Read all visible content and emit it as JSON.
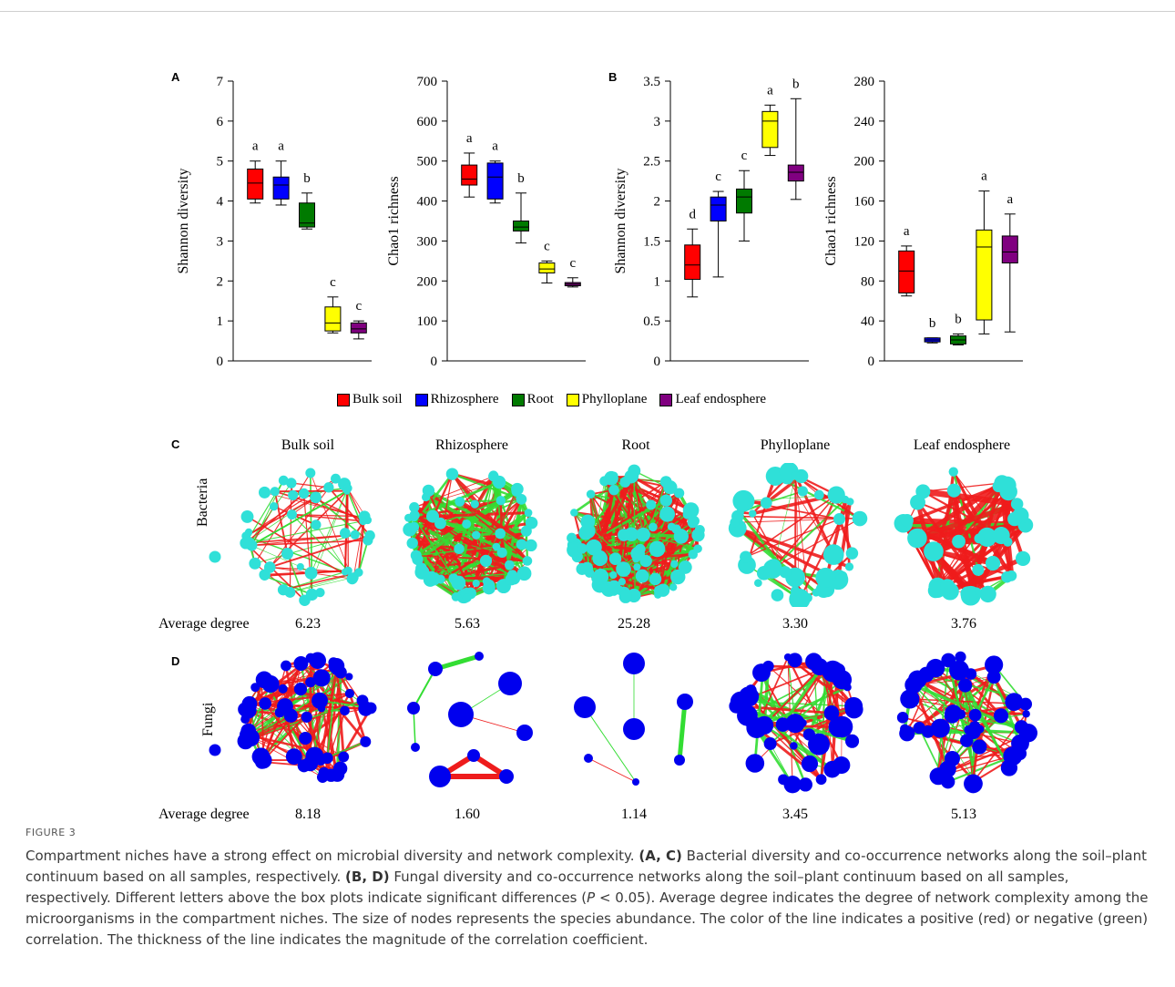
{
  "chart_data": [
    {
      "panel": "A",
      "type": "box",
      "ylabel": "Shannon diversity",
      "ylim": [
        0,
        7
      ],
      "yticks": [
        "0",
        "1",
        "2",
        "3",
        "4",
        "5",
        "6",
        "7"
      ],
      "categories": [
        "Bulk soil",
        "Rhizosphere",
        "Root",
        "Phylloplane",
        "Leaf endosphere"
      ],
      "boxes": [
        {
          "min": 3.95,
          "q1": 4.05,
          "median": 4.45,
          "q3": 4.8,
          "max": 5.0,
          "letter": "a"
        },
        {
          "min": 3.9,
          "q1": 4.05,
          "median": 4.4,
          "q3": 4.6,
          "max": 5.0,
          "letter": "a"
        },
        {
          "min": 3.3,
          "q1": 3.35,
          "median": 3.45,
          "q3": 3.95,
          "max": 4.2,
          "letter": "b"
        },
        {
          "min": 0.7,
          "q1": 0.75,
          "median": 0.95,
          "q3": 1.35,
          "max": 1.6,
          "letter": "c"
        },
        {
          "min": 0.55,
          "q1": 0.7,
          "median": 0.8,
          "q3": 0.95,
          "max": 1.0,
          "letter": "c"
        }
      ]
    },
    {
      "panel": "",
      "type": "box",
      "ylabel": "Chao1 richness",
      "ylim": [
        0,
        700
      ],
      "yticks": [
        "0",
        "100",
        "200",
        "300",
        "400",
        "500",
        "600",
        "700"
      ],
      "categories": [
        "Bulk soil",
        "Rhizosphere",
        "Root",
        "Phylloplane",
        "Leaf endosphere"
      ],
      "boxes": [
        {
          "min": 410,
          "q1": 440,
          "median": 455,
          "q3": 490,
          "max": 520,
          "letter": "a"
        },
        {
          "min": 395,
          "q1": 405,
          "median": 460,
          "q3": 495,
          "max": 500,
          "letter": "a"
        },
        {
          "min": 295,
          "q1": 325,
          "median": 335,
          "q3": 350,
          "max": 420,
          "letter": "b"
        },
        {
          "min": 195,
          "q1": 220,
          "median": 230,
          "q3": 245,
          "max": 250,
          "letter": "c"
        },
        {
          "min": 185,
          "q1": 188,
          "median": 192,
          "q3": 196,
          "max": 208,
          "letter": "c"
        }
      ]
    },
    {
      "panel": "B",
      "type": "box",
      "ylabel": "Shannon diversity",
      "ylim": [
        0,
        3.5
      ],
      "yticks": [
        "0",
        "0.5",
        "1",
        "1.5",
        "2",
        "2.5",
        "3",
        "3.5"
      ],
      "categories": [
        "Bulk soil",
        "Rhizosphere",
        "Root",
        "Phylloplane",
        "Leaf endosphere"
      ],
      "boxes": [
        {
          "min": 0.8,
          "q1": 1.02,
          "median": 1.2,
          "q3": 1.45,
          "max": 1.65,
          "letter": "d"
        },
        {
          "min": 1.05,
          "q1": 1.75,
          "median": 1.95,
          "q3": 2.05,
          "max": 2.12,
          "letter": "c"
        },
        {
          "min": 1.5,
          "q1": 1.85,
          "median": 2.05,
          "q3": 2.15,
          "max": 2.38,
          "letter": "c"
        },
        {
          "min": 2.57,
          "q1": 2.67,
          "median": 3.0,
          "q3": 3.12,
          "max": 3.2,
          "letter": "a"
        },
        {
          "min": 2.02,
          "q1": 2.25,
          "median": 2.36,
          "q3": 2.45,
          "max": 3.28,
          "letter": "b"
        }
      ]
    },
    {
      "panel": "",
      "type": "box",
      "ylabel": "Chao1 richness",
      "ylim": [
        0,
        280
      ],
      "yticks": [
        "0",
        "40",
        "80",
        "120",
        "160",
        "200",
        "240",
        "280"
      ],
      "categories": [
        "Bulk soil",
        "Rhizosphere",
        "Root",
        "Phylloplane",
        "Leaf endosphere"
      ],
      "boxes": [
        {
          "min": 65,
          "q1": 68,
          "median": 90,
          "q3": 110,
          "max": 115,
          "letter": "a"
        },
        {
          "min": 18,
          "q1": 19,
          "median": 21,
          "q3": 23,
          "max": 23,
          "letter": "b"
        },
        {
          "min": 16,
          "q1": 17,
          "median": 21,
          "q3": 25,
          "max": 27,
          "letter": "b"
        },
        {
          "min": 27,
          "q1": 41,
          "median": 114,
          "q3": 131,
          "max": 170,
          "letter": "a"
        },
        {
          "min": 29,
          "q1": 98,
          "median": 109,
          "q3": 125,
          "max": 147,
          "letter": "a"
        }
      ]
    }
  ],
  "legend": [
    {
      "label": "Bulk soil",
      "color": "#ff0000"
    },
    {
      "label": "Rhizosphere",
      "color": "#0000ff"
    },
    {
      "label": "Root",
      "color": "#007a00"
    },
    {
      "label": "Phylloplane",
      "color": "#ffff00"
    },
    {
      "label": "Leaf endosphere",
      "color": "#800080"
    }
  ],
  "networks": {
    "panel_c": "C",
    "panel_d": "D",
    "columns": [
      "Bulk soil",
      "Rhizosphere",
      "Root",
      "Phylloplane",
      "Leaf endosphere"
    ],
    "bacteria_label": "Bacteria",
    "fungi_label": "Fungi",
    "avg_label": "Average degree",
    "bacteria_degree": [
      "6.23",
      "5.63",
      "25.28",
      "3.30",
      "3.76"
    ],
    "fungi_degree": [
      "8.18",
      "1.60",
      "1.14",
      "3.45",
      "5.13"
    ],
    "bacteria_node_color": "#2fe0d8",
    "fungi_node_color": "#0000ee",
    "positive_color": "#ee1c1c",
    "negative_color": "#33dd33"
  },
  "caption": {
    "figure_label": "FIGURE 3",
    "s1": "Compartment niches have a strong effect on microbial diversity and network complexity. ",
    "b1": "(A, C)",
    "s2": " Bacterial diversity and co-occurrence networks along the soil–plant continuum based on all samples, respectively. ",
    "b2": "(B, D)",
    "s3": " Fungal diversity and co-occurrence networks along the soil–plant continuum based on all samples, respectively. Different letters above the box plots indicate significant differences (",
    "p": "P",
    "s4": " < 0.05). Average degree indicates the degree of network complexity among the microorganisms in the compartment niches. The size of nodes represents the species abundance. The color of the line indicates a positive (red) or negative (green) correlation. The thickness of the line indicates the magnitude of the correlation coefficient."
  }
}
